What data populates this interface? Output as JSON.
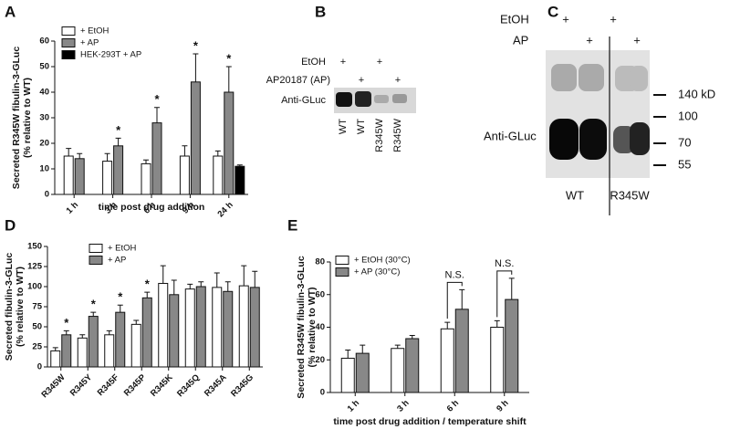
{
  "chart_data": [
    {
      "type": "bar",
      "panel": "A",
      "ylabel": [
        "Secreted R345W fibulin-3-GLuc",
        "(% relative to WT)"
      ],
      "xlabel": "time post drug addition",
      "categories": [
        "1 h",
        "3 h",
        "6 h",
        "9 h",
        "24 h"
      ],
      "ylim": [
        0,
        60
      ],
      "yticks": [
        0,
        10,
        20,
        30,
        40,
        50,
        60
      ],
      "series": [
        {
          "name": "+ EtOH",
          "color": "#ffffff",
          "values": [
            15,
            13,
            12,
            15,
            15
          ],
          "errors": [
            3,
            3,
            1.5,
            4,
            2
          ]
        },
        {
          "name": "+ AP",
          "color": "#888888",
          "values": [
            14,
            19,
            28,
            44,
            40
          ],
          "errors": [
            2,
            3,
            6,
            11,
            10
          ],
          "marks": [
            null,
            "*",
            "*",
            "*",
            "*"
          ]
        },
        {
          "name": "HEK-293T + AP",
          "color": "#000000",
          "values": [
            null,
            null,
            null,
            null,
            11
          ],
          "errors": [
            null,
            null,
            null,
            null,
            0.5
          ]
        }
      ]
    },
    {
      "type": "bar",
      "panel": "D",
      "ylabel": [
        "Secreted fibulin-3-GLuc",
        "(% relative to WT)"
      ],
      "categories": [
        "R345W",
        "R345Y",
        "R345F",
        "R345P",
        "R345K",
        "R345Q",
        "R345A",
        "R345G"
      ],
      "ylim": [
        0,
        150
      ],
      "yticks": [
        0,
        25,
        50,
        75,
        100,
        125,
        150
      ],
      "series": [
        {
          "name": "+ EtOH",
          "color": "#ffffff",
          "values": [
            20,
            36,
            40,
            53,
            104,
            97,
            99,
            101
          ],
          "errors": [
            4,
            4,
            5,
            5,
            22,
            6,
            18,
            25
          ]
        },
        {
          "name": "+ AP",
          "color": "#888888",
          "values": [
            40,
            63,
            68,
            86,
            90,
            100,
            94,
            99
          ],
          "errors": [
            5,
            5,
            9,
            7,
            18,
            6,
            12,
            20
          ],
          "marks": [
            "*",
            "*",
            "*",
            "*",
            null,
            null,
            null,
            null
          ]
        }
      ]
    },
    {
      "type": "bar",
      "panel": "E",
      "ylabel": [
        "Secreted R345W fibulin-3-GLuc",
        "(% relative to WT)"
      ],
      "xlabel": "time post drug addition / temperature shift",
      "categories": [
        "1 h",
        "3 h",
        "6 h",
        "9 h"
      ],
      "ylim": [
        0,
        80
      ],
      "yticks": [
        0,
        20,
        40,
        60,
        80
      ],
      "brackets": [
        null,
        null,
        "N.S.",
        "N.S."
      ],
      "series": [
        {
          "name": "+ EtOH (30°C)",
          "color": "#ffffff",
          "values": [
            21,
            27,
            39,
            40
          ],
          "errors": [
            5,
            2,
            4,
            4
          ]
        },
        {
          "name": "+ AP (30°C)",
          "color": "#888888",
          "values": [
            24,
            33,
            51,
            57
          ],
          "errors": [
            5,
            2,
            12,
            13
          ]
        }
      ]
    }
  ],
  "blots": [
    {
      "panel": "B",
      "etoh_label": "EtOH",
      "ap_label": "AP20187 (AP)",
      "antibody": "Anti-GLuc",
      "etoh": [
        "+",
        null,
        "+",
        null
      ],
      "ap": [
        null,
        "+",
        null,
        "+"
      ],
      "lanes": [
        "WT",
        "WT",
        "R345W",
        "R345W"
      ]
    },
    {
      "panel": "C",
      "etoh_label": "EtOH",
      "ap_label": "AP",
      "antibody": "Anti-GLuc",
      "etoh": [
        "+",
        null,
        "+",
        null
      ],
      "ap": [
        null,
        "+",
        null,
        "+"
      ],
      "markers": [
        "140 kD",
        "100",
        "70",
        "55"
      ],
      "groups": [
        "WT",
        "R345W"
      ]
    }
  ]
}
